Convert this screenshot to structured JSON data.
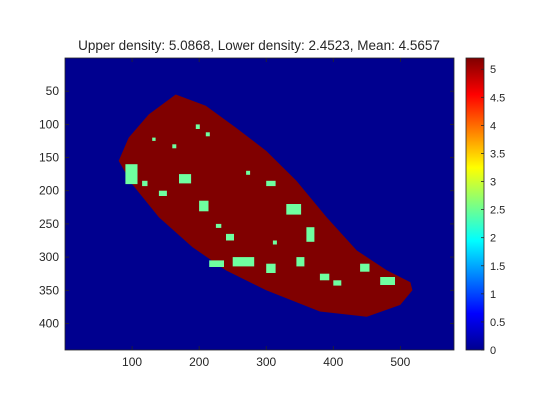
{
  "figure": {
    "background": "#ffffff"
  },
  "chart_data": {
    "type": "heatmap",
    "title": "Upper density: 5.0868, Lower density: 2.4523, Mean: 4.5657",
    "xlabel": "",
    "ylabel": "",
    "xlim": [
      0,
      580
    ],
    "ylim": [
      0,
      440
    ],
    "y_reversed": true,
    "x_ticks": [
      100,
      200,
      300,
      400,
      500
    ],
    "y_ticks": [
      50,
      100,
      150,
      200,
      250,
      300,
      350,
      400
    ],
    "colormap": "jet",
    "colorbar": {
      "clim": [
        0,
        5.2
      ],
      "ticks": [
        0,
        0.5,
        1,
        1.5,
        2,
        2.5,
        3,
        3.5,
        4,
        4.5,
        5
      ],
      "tick_labels": [
        "0",
        "0.5",
        "1",
        "1.5",
        "2",
        "2.5",
        "3",
        "3.5",
        "4",
        "4.5",
        "5"
      ]
    },
    "values": {
      "background": 0,
      "upper_density": 5.0868,
      "lower_density": 2.4523,
      "mean": 4.5657
    },
    "colors": {
      "background": "#00008f",
      "upper": "#800000",
      "lower": "#6fffa0",
      "axis": "#262626"
    },
    "region_outline": [
      [
        165,
        55
      ],
      [
        210,
        72
      ],
      [
        255,
        105
      ],
      [
        300,
        140
      ],
      [
        345,
        185
      ],
      [
        390,
        240
      ],
      [
        435,
        290
      ],
      [
        480,
        320
      ],
      [
        515,
        338
      ],
      [
        518,
        350
      ],
      [
        500,
        372
      ],
      [
        450,
        390
      ],
      [
        380,
        382
      ],
      [
        300,
        350
      ],
      [
        240,
        320
      ],
      [
        190,
        285
      ],
      [
        140,
        240
      ],
      [
        100,
        190
      ],
      [
        80,
        155
      ],
      [
        95,
        120
      ],
      [
        125,
        85
      ]
    ],
    "lower_patches": [
      [
        90,
        160,
        18,
        30
      ],
      [
        115,
        185,
        8,
        8
      ],
      [
        140,
        200,
        12,
        8
      ],
      [
        195,
        100,
        6,
        7
      ],
      [
        210,
        112,
        6,
        6
      ],
      [
        170,
        175,
        18,
        14
      ],
      [
        200,
        215,
        14,
        16
      ],
      [
        240,
        265,
        12,
        10
      ],
      [
        160,
        130,
        6,
        6
      ],
      [
        130,
        120,
        5,
        5
      ],
      [
        250,
        300,
        32,
        14
      ],
      [
        300,
        310,
        14,
        14
      ],
      [
        215,
        305,
        22,
        10
      ],
      [
        330,
        220,
        22,
        16
      ],
      [
        300,
        185,
        14,
        8
      ],
      [
        360,
        255,
        12,
        22
      ],
      [
        345,
        300,
        12,
        14
      ],
      [
        380,
        325,
        14,
        10
      ],
      [
        400,
        335,
        12,
        8
      ],
      [
        440,
        310,
        14,
        12
      ],
      [
        470,
        330,
        22,
        12
      ],
      [
        310,
        275,
        6,
        6
      ],
      [
        270,
        170,
        6,
        6
      ],
      [
        225,
        250,
        8,
        6
      ]
    ]
  }
}
